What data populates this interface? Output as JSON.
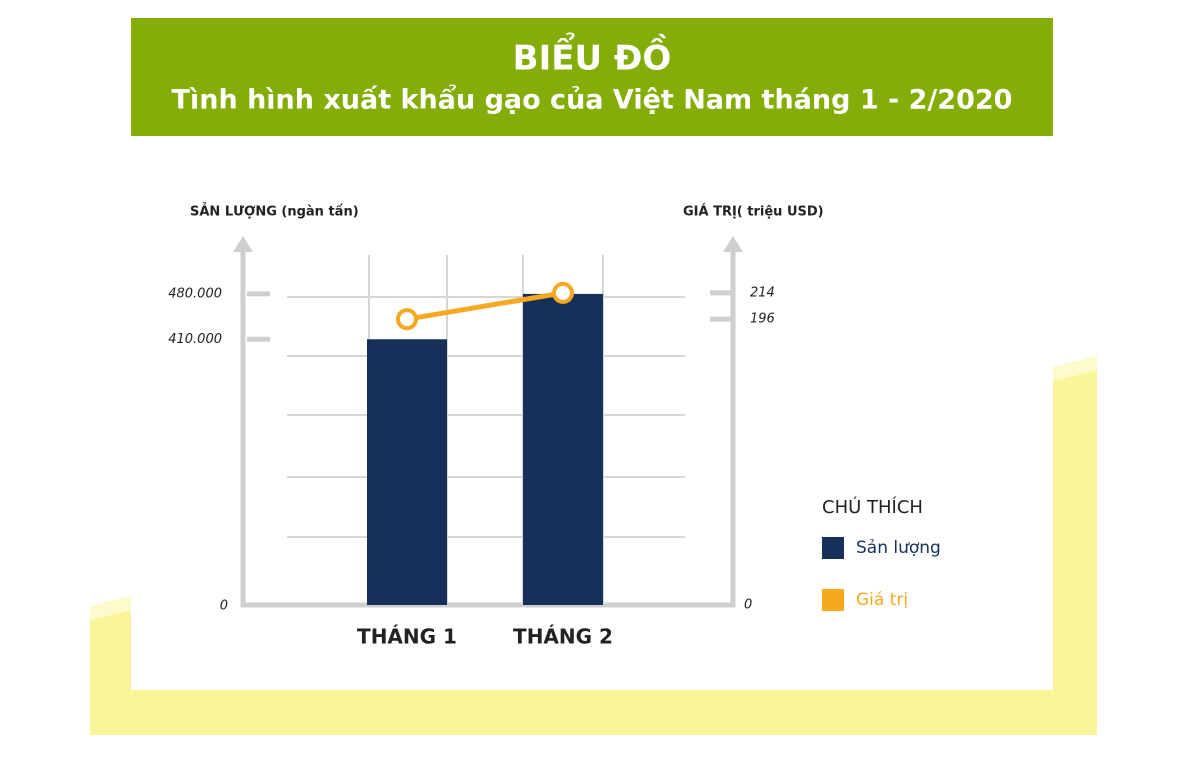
{
  "chart_data": {
    "type": "bar-line",
    "title": "BIỂU ĐỒ",
    "subtitle": "Tình hình xuất khẩu gạo của Việt Nam tháng 1 - 2/2020",
    "y_label": "SẢN LƯỢNG (ngàn tấn)",
    "y2_label": "GIÁ TRỊ( triệu USD)",
    "legend_title": "CHÚ THÍCH",
    "categories": [
      "THÁNG 1",
      "THÁNG 2"
    ],
    "series": [
      {
        "name": "Sản lượng",
        "type": "bar",
        "color": "#17305a",
        "values": [
          410000,
          480000
        ]
      },
      {
        "name": "Giá trị",
        "type": "line",
        "color": "#f6a821",
        "axis": "y2",
        "values": [
          196,
          214
        ]
      }
    ],
    "ylim": [
      0,
      540000
    ],
    "yticks": [
      0,
      {
        "value": 410000,
        "label": "410.000"
      },
      {
        "value": 480000,
        "label": "480.000"
      }
    ],
    "y2lim": [
      0,
      240
    ],
    "y2ticks": [
      0,
      196,
      214
    ]
  }
}
